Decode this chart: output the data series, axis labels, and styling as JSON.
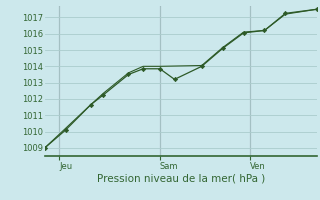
{
  "xlabel": "Pression niveau de la mer( hPa )",
  "bg_color": "#cce8ec",
  "grid_color": "#aacccc",
  "line_color": "#2d5a27",
  "ylim": [
    1008.5,
    1017.7
  ],
  "yticks": [
    1009,
    1010,
    1011,
    1012,
    1013,
    1014,
    1015,
    1016,
    1017
  ],
  "xlim": [
    0,
    13.0
  ],
  "series1_x": [
    0.0,
    1.0,
    2.2,
    2.8,
    4.0,
    4.7,
    5.5,
    6.2,
    7.5,
    8.5,
    9.5,
    10.5,
    11.5,
    13.0
  ],
  "series1_y": [
    1009.0,
    1010.1,
    1011.65,
    1012.25,
    1013.5,
    1013.85,
    1013.85,
    1013.2,
    1014.0,
    1015.1,
    1016.05,
    1016.2,
    1017.25,
    1017.5
  ],
  "series2_x": [
    0.0,
    2.2,
    2.8,
    4.0,
    4.7,
    5.5,
    7.5,
    8.5,
    9.5,
    10.5,
    11.5,
    13.0
  ],
  "series2_y": [
    1009.0,
    1011.65,
    1012.35,
    1013.6,
    1014.0,
    1014.0,
    1014.05,
    1015.15,
    1016.1,
    1016.2,
    1017.2,
    1017.5
  ],
  "xtick_positions": [
    0.7,
    5.5,
    9.8
  ],
  "xtick_labels": [
    "Jeu",
    "Sam",
    "Ven"
  ],
  "vline_positions": [
    0.7,
    5.5,
    9.8
  ],
  "vline_color": "#888899",
  "spine_color": "#336633",
  "tick_fontsize": 6.0,
  "xlabel_fontsize": 7.5
}
